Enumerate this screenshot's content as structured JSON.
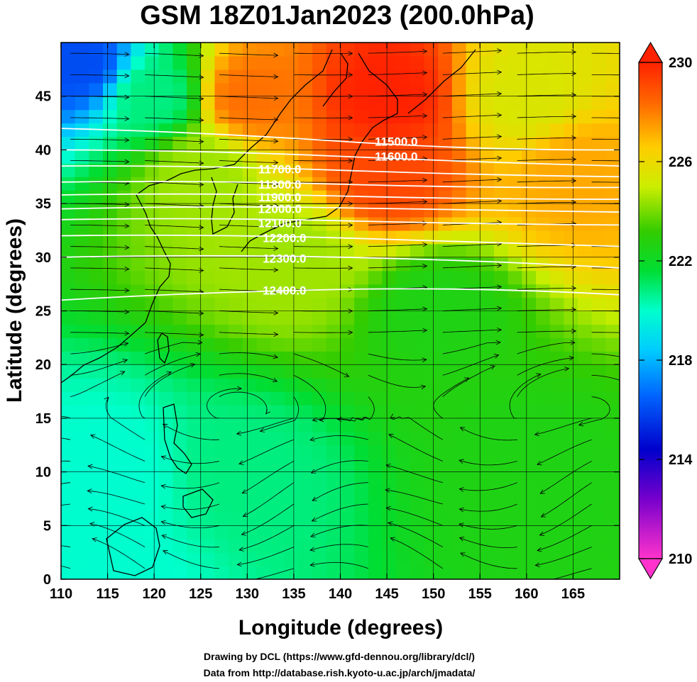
{
  "chart_data": {
    "type": "heatmap",
    "title": "GSM 18Z01Jan2023 (200.0hPa)",
    "xlabel": "Longitude (degrees)",
    "ylabel": "Latitude  (degrees)",
    "xlim": [
      110,
      170
    ],
    "ylim": [
      0,
      50
    ],
    "x_ticks": [
      "110",
      "115",
      "120",
      "125",
      "130",
      "135",
      "140",
      "145",
      "150",
      "155",
      "160",
      "165"
    ],
    "y_ticks": [
      "0",
      "5",
      "10",
      "15",
      "20",
      "25",
      "30",
      "35",
      "40",
      "45"
    ],
    "colorbar": {
      "range": [
        210,
        230
      ],
      "ticks": [
        "210",
        "214",
        "218",
        "222",
        "226",
        "230"
      ],
      "colors": [
        "#ff33cc",
        "#9900cc",
        "#0000cc",
        "#0066ff",
        "#00ccff",
        "#00ffcc",
        "#00dd33",
        "#33cc00",
        "#ccee00",
        "#ffcc00",
        "#ff6600",
        "#ff2200"
      ]
    },
    "field_description_points": [
      {
        "lon": 112,
        "lat": 48,
        "value": 215
      },
      {
        "lon": 120,
        "lat": 45,
        "value": 220
      },
      {
        "lon": 130,
        "lat": 45,
        "value": 228
      },
      {
        "lon": 145,
        "lat": 45,
        "value": 230
      },
      {
        "lon": 160,
        "lat": 45,
        "value": 225
      },
      {
        "lon": 125,
        "lat": 38,
        "value": 224
      },
      {
        "lon": 145,
        "lat": 38,
        "value": 229
      },
      {
        "lon": 165,
        "lat": 38,
        "value": 227
      },
      {
        "lon": 135,
        "lat": 30,
        "value": 224
      },
      {
        "lon": 150,
        "lat": 25,
        "value": 222
      },
      {
        "lon": 115,
        "lat": 10,
        "value": 219
      },
      {
        "lon": 130,
        "lat": 10,
        "value": 220
      },
      {
        "lon": 160,
        "lat": 10,
        "value": 222
      },
      {
        "lon": 115,
        "lat": 0,
        "value": 219
      }
    ],
    "contours": [
      {
        "label": "11500.0",
        "lat_start": 42.0,
        "lat_mid": 40.8,
        "lat_end": 40.0
      },
      {
        "label": "11600.0",
        "lat_start": 40.0,
        "lat_mid": 39.4,
        "lat_end": 38.5
      },
      {
        "label": "11700.0",
        "lat_start": 38.5,
        "lat_mid": 38.1,
        "lat_end": 37.5
      },
      {
        "label": "11800.0",
        "lat_start": 37.0,
        "lat_mid": 36.8,
        "lat_end": 36.5
      },
      {
        "label": "11900.0",
        "lat_start": 35.8,
        "lat_mid": 35.7,
        "lat_end": 35.4
      },
      {
        "label": "12000.0",
        "lat_start": 34.5,
        "lat_mid": 34.6,
        "lat_end": 34.2
      },
      {
        "label": "12100.0",
        "lat_start": 33.5,
        "lat_mid": 33.4,
        "lat_end": 33.0
      },
      {
        "label": "12200.0",
        "lat_start": 32.0,
        "lat_mid": 31.8,
        "lat_end": 31.0
      },
      {
        "label": "12300.0",
        "lat_start": 30.0,
        "lat_mid": 30.0,
        "lat_end": 29.0
      },
      {
        "label": "12400.0",
        "lat_start": 26.0,
        "lat_mid": 27.0,
        "lat_end": 26.5
      }
    ],
    "grid": true
  },
  "credits": {
    "line1": "Drawing by DCL (https://www.gfd-dennou.org/library/dcl/)",
    "line2": "Data from http://database.rish.kyoto-u.ac.jp/arch/jmadata/"
  }
}
